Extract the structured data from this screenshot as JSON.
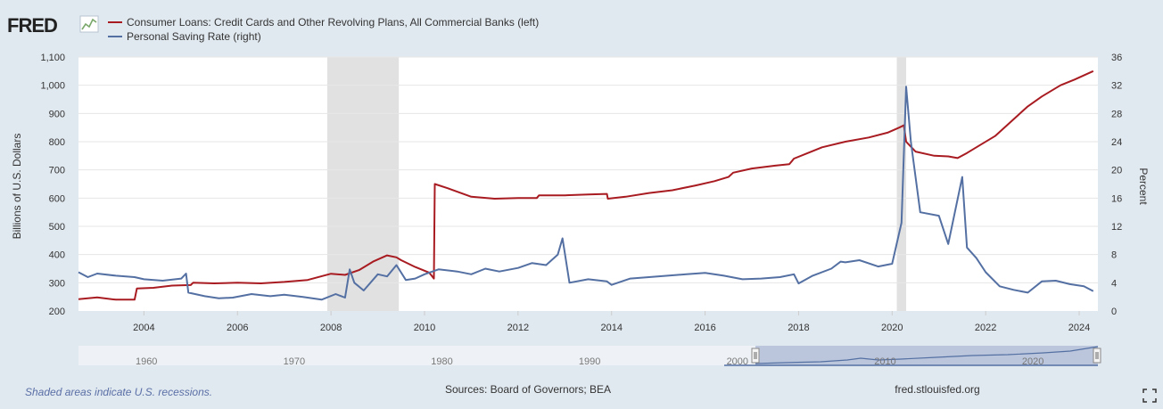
{
  "logo": {
    "text": "FRED"
  },
  "chart_data": {
    "type": "line",
    "title": "",
    "legend_position": "top-left",
    "series": [
      {
        "name": "Consumer Loans: Credit Cards and Other Revolving Plans, All Commercial Banks (left)",
        "axis": "left",
        "color": "#a81b21",
        "points": [
          [
            2002.6,
            242
          ],
          [
            2003.0,
            248
          ],
          [
            2003.4,
            240
          ],
          [
            2003.8,
            240
          ],
          [
            2003.85,
            280
          ],
          [
            2004.2,
            282
          ],
          [
            2004.6,
            290
          ],
          [
            2005.0,
            292
          ],
          [
            2005.05,
            300
          ],
          [
            2005.5,
            298
          ],
          [
            2006.0,
            300
          ],
          [
            2006.5,
            298
          ],
          [
            2007.0,
            303
          ],
          [
            2007.5,
            310
          ],
          [
            2008.0,
            332
          ],
          [
            2008.3,
            328
          ],
          [
            2008.6,
            345
          ],
          [
            2008.9,
            375
          ],
          [
            2009.2,
            397
          ],
          [
            2009.4,
            390
          ],
          [
            2009.5,
            380
          ],
          [
            2009.8,
            356
          ],
          [
            2010.1,
            336
          ],
          [
            2010.2,
            315
          ],
          [
            2010.22,
            650
          ],
          [
            2010.5,
            635
          ],
          [
            2011.0,
            605
          ],
          [
            2011.5,
            598
          ],
          [
            2012.0,
            600
          ],
          [
            2012.4,
            600
          ],
          [
            2012.45,
            610
          ],
          [
            2013.0,
            610
          ],
          [
            2013.5,
            613
          ],
          [
            2013.9,
            615
          ],
          [
            2013.92,
            598
          ],
          [
            2014.3,
            605
          ],
          [
            2014.8,
            618
          ],
          [
            2015.3,
            628
          ],
          [
            2015.8,
            645
          ],
          [
            2016.2,
            660
          ],
          [
            2016.5,
            675
          ],
          [
            2016.6,
            690
          ],
          [
            2017.0,
            705
          ],
          [
            2017.5,
            715
          ],
          [
            2017.8,
            720
          ],
          [
            2017.9,
            740
          ],
          [
            2018.2,
            760
          ],
          [
            2018.5,
            780
          ],
          [
            2019.0,
            800
          ],
          [
            2019.5,
            815
          ],
          [
            2019.9,
            832
          ],
          [
            2020.15,
            850
          ],
          [
            2020.25,
            858
          ],
          [
            2020.3,
            800
          ],
          [
            2020.5,
            765
          ],
          [
            2020.9,
            750
          ],
          [
            2021.2,
            748
          ],
          [
            2021.4,
            742
          ],
          [
            2021.6,
            760
          ],
          [
            2021.9,
            790
          ],
          [
            2022.2,
            820
          ],
          [
            2022.6,
            880
          ],
          [
            2022.9,
            925
          ],
          [
            2023.2,
            960
          ],
          [
            2023.6,
            1000
          ],
          [
            2023.9,
            1020
          ],
          [
            2024.1,
            1035
          ],
          [
            2024.3,
            1050
          ]
        ]
      },
      {
        "name": "Personal Saving Rate (right)",
        "axis": "right",
        "color": "#5470a3",
        "points": [
          [
            2002.6,
            5.5
          ],
          [
            2002.8,
            4.8
          ],
          [
            2003.0,
            5.3
          ],
          [
            2003.4,
            5.0
          ],
          [
            2003.8,
            4.8
          ],
          [
            2004.0,
            4.5
          ],
          [
            2004.4,
            4.3
          ],
          [
            2004.8,
            4.6
          ],
          [
            2004.9,
            5.3
          ],
          [
            2004.95,
            2.6
          ],
          [
            2005.3,
            2.1
          ],
          [
            2005.6,
            1.8
          ],
          [
            2005.9,
            1.9
          ],
          [
            2006.3,
            2.4
          ],
          [
            2006.7,
            2.1
          ],
          [
            2007.0,
            2.3
          ],
          [
            2007.4,
            2.0
          ],
          [
            2007.8,
            1.6
          ],
          [
            2008.1,
            2.4
          ],
          [
            2008.3,
            1.9
          ],
          [
            2008.4,
            5.9
          ],
          [
            2008.5,
            4.0
          ],
          [
            2008.7,
            2.9
          ],
          [
            2009.0,
            5.2
          ],
          [
            2009.2,
            4.9
          ],
          [
            2009.4,
            6.5
          ],
          [
            2009.6,
            4.4
          ],
          [
            2009.8,
            4.6
          ],
          [
            2010.0,
            5.2
          ],
          [
            2010.3,
            5.9
          ],
          [
            2010.7,
            5.6
          ],
          [
            2011.0,
            5.2
          ],
          [
            2011.3,
            6.0
          ],
          [
            2011.6,
            5.6
          ],
          [
            2012.0,
            6.1
          ],
          [
            2012.3,
            6.8
          ],
          [
            2012.6,
            6.5
          ],
          [
            2012.85,
            8.0
          ],
          [
            2012.95,
            10.3
          ],
          [
            2013.1,
            4.0
          ],
          [
            2013.5,
            4.5
          ],
          [
            2013.9,
            4.2
          ],
          [
            2014.0,
            3.7
          ],
          [
            2014.4,
            4.6
          ],
          [
            2014.8,
            4.8
          ],
          [
            2015.2,
            5.0
          ],
          [
            2015.6,
            5.2
          ],
          [
            2016.0,
            5.4
          ],
          [
            2016.4,
            5.0
          ],
          [
            2016.8,
            4.5
          ],
          [
            2017.2,
            4.6
          ],
          [
            2017.6,
            4.8
          ],
          [
            2017.9,
            5.2
          ],
          [
            2018.0,
            3.9
          ],
          [
            2018.3,
            5.0
          ],
          [
            2018.7,
            6.0
          ],
          [
            2018.9,
            7.0
          ],
          [
            2019.0,
            6.9
          ],
          [
            2019.3,
            7.2
          ],
          [
            2019.7,
            6.3
          ],
          [
            2020.0,
            6.7
          ],
          [
            2020.2,
            12.5
          ],
          [
            2020.3,
            31.8
          ],
          [
            2020.4,
            24.0
          ],
          [
            2020.6,
            14.0
          ],
          [
            2021.0,
            13.5
          ],
          [
            2021.2,
            9.5
          ],
          [
            2021.5,
            19.0
          ],
          [
            2021.6,
            9.0
          ],
          [
            2021.8,
            7.5
          ],
          [
            2022.0,
            5.5
          ],
          [
            2022.3,
            3.5
          ],
          [
            2022.6,
            3.0
          ],
          [
            2022.9,
            2.6
          ],
          [
            2023.2,
            4.2
          ],
          [
            2023.5,
            4.3
          ],
          [
            2023.8,
            3.8
          ],
          [
            2024.1,
            3.5
          ],
          [
            2024.3,
            2.8
          ]
        ]
      }
    ],
    "recessions": [
      [
        2007.92,
        2009.45
      ],
      [
        2020.1,
        2020.3
      ]
    ],
    "x_ticks": [
      "2004",
      "2006",
      "2008",
      "2010",
      "2012",
      "2014",
      "2016",
      "2018",
      "2020",
      "2022",
      "2024"
    ],
    "y_left": {
      "label": "Billions of U.S. Dollars",
      "min": 200,
      "max": 1100,
      "ticks": [
        "200",
        "300",
        "400",
        "500",
        "600",
        "700",
        "800",
        "900",
        "1,000",
        "1,100"
      ]
    },
    "y_right": {
      "label": "Percent",
      "min": 0,
      "max": 36,
      "ticks": [
        "0",
        "4",
        "8",
        "12",
        "16",
        "20",
        "24",
        "28",
        "32",
        "36"
      ]
    },
    "grid": true,
    "navigator_ticks": [
      "1960",
      "1970",
      "1980",
      "1990",
      "2000",
      "2010",
      "2020"
    ]
  },
  "footer": {
    "note": "Shaded areas indicate U.S. recessions.",
    "source": "Sources: Board of Governors; BEA",
    "site": "fred.stlouisfed.org"
  }
}
